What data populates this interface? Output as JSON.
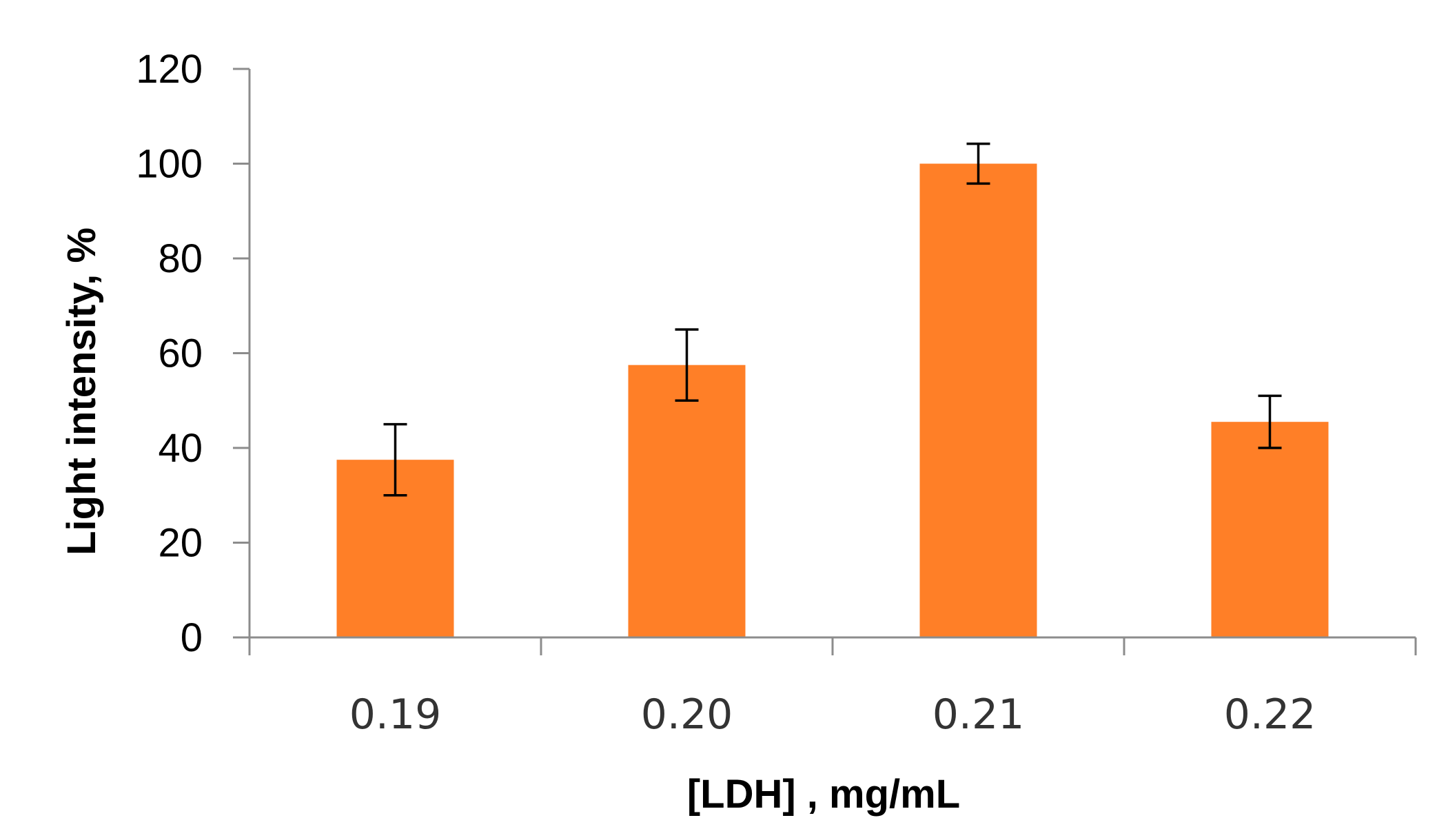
{
  "chart_data": {
    "type": "bar",
    "title": "",
    "xlabel": "[LDH] , mg/mL",
    "ylabel": "Light intensity, %",
    "categories": [
      "0.19",
      "0.20",
      "0.21",
      "0.22"
    ],
    "values": [
      37.5,
      57.5,
      100,
      45.5
    ],
    "error": [
      7.5,
      7.5,
      4.2,
      5.5
    ],
    "ylim": [
      0,
      120
    ],
    "yticks": [
      "0",
      "20",
      "40",
      "60",
      "80",
      "100",
      "120"
    ],
    "grid": false,
    "legend": "none",
    "colors": {
      "bar": "#ff7f27",
      "axis": "#8c8c8c",
      "errorbar": "#000000"
    }
  }
}
